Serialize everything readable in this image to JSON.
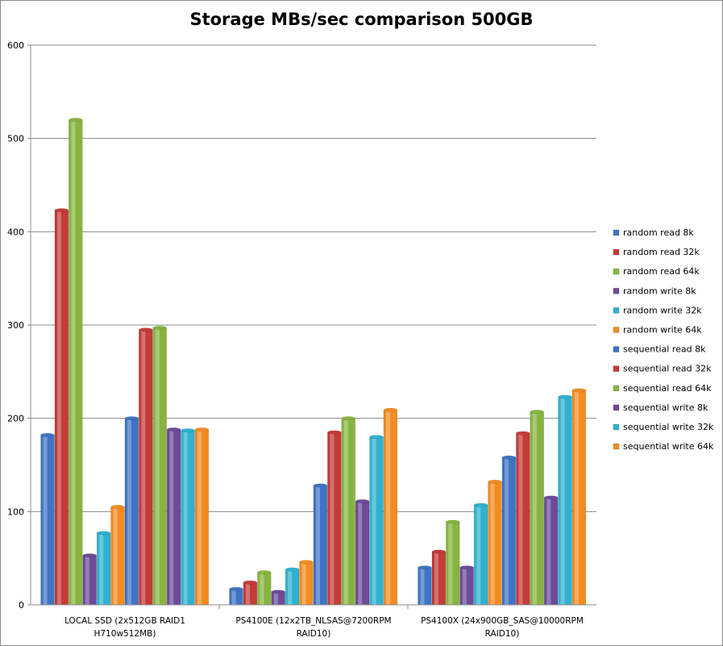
{
  "chart_data": {
    "type": "bar",
    "title": "Storage MBs/sec comparison 500GB",
    "xlabel": "",
    "ylabel": "",
    "ylim": [
      0,
      600
    ],
    "yticks": [
      0,
      100,
      200,
      300,
      400,
      500,
      600
    ],
    "grid": true,
    "legend_position": "right",
    "categories": [
      [
        "LOCAL SSD (2x512GB RAID1",
        "H710w512MB)"
      ],
      [
        "PS4100E (12x2TB_NLSAS@7200RPM",
        "RAID10)"
      ],
      [
        "PS4100X (24x900GB_SAS@10000RPM",
        "RAID10)"
      ]
    ],
    "series": [
      {
        "name": "random read 8k",
        "color": "#3f74c4",
        "values": [
          182,
          17,
          40
        ]
      },
      {
        "name": "random read 32k",
        "color": "#c43b38",
        "values": [
          423,
          24,
          57
        ]
      },
      {
        "name": "random read 64k",
        "color": "#87b440",
        "values": [
          520,
          35,
          89
        ]
      },
      {
        "name": "random write 8k",
        "color": "#6d4b99",
        "values": [
          53,
          14,
          40
        ]
      },
      {
        "name": "random write 32k",
        "color": "#2fb1cf",
        "values": [
          77,
          38,
          107
        ]
      },
      {
        "name": "random write 64k",
        "color": "#f28c22",
        "values": [
          105,
          46,
          132
        ]
      },
      {
        "name": "sequential read 8k",
        "color": "#3f74c4",
        "values": [
          200,
          128,
          158
        ]
      },
      {
        "name": "sequential read 32k",
        "color": "#c43b38",
        "values": [
          295,
          185,
          184
        ]
      },
      {
        "name": "sequential read 64k",
        "color": "#87b440",
        "values": [
          297,
          200,
          207
        ]
      },
      {
        "name": "sequential write 8k",
        "color": "#6d4b99",
        "values": [
          188,
          111,
          115
        ]
      },
      {
        "name": "sequential write 32k",
        "color": "#2fb1cf",
        "values": [
          187,
          180,
          223
        ]
      },
      {
        "name": "sequential write 64k",
        "color": "#f28c22",
        "values": [
          188,
          209,
          230
        ]
      }
    ]
  }
}
